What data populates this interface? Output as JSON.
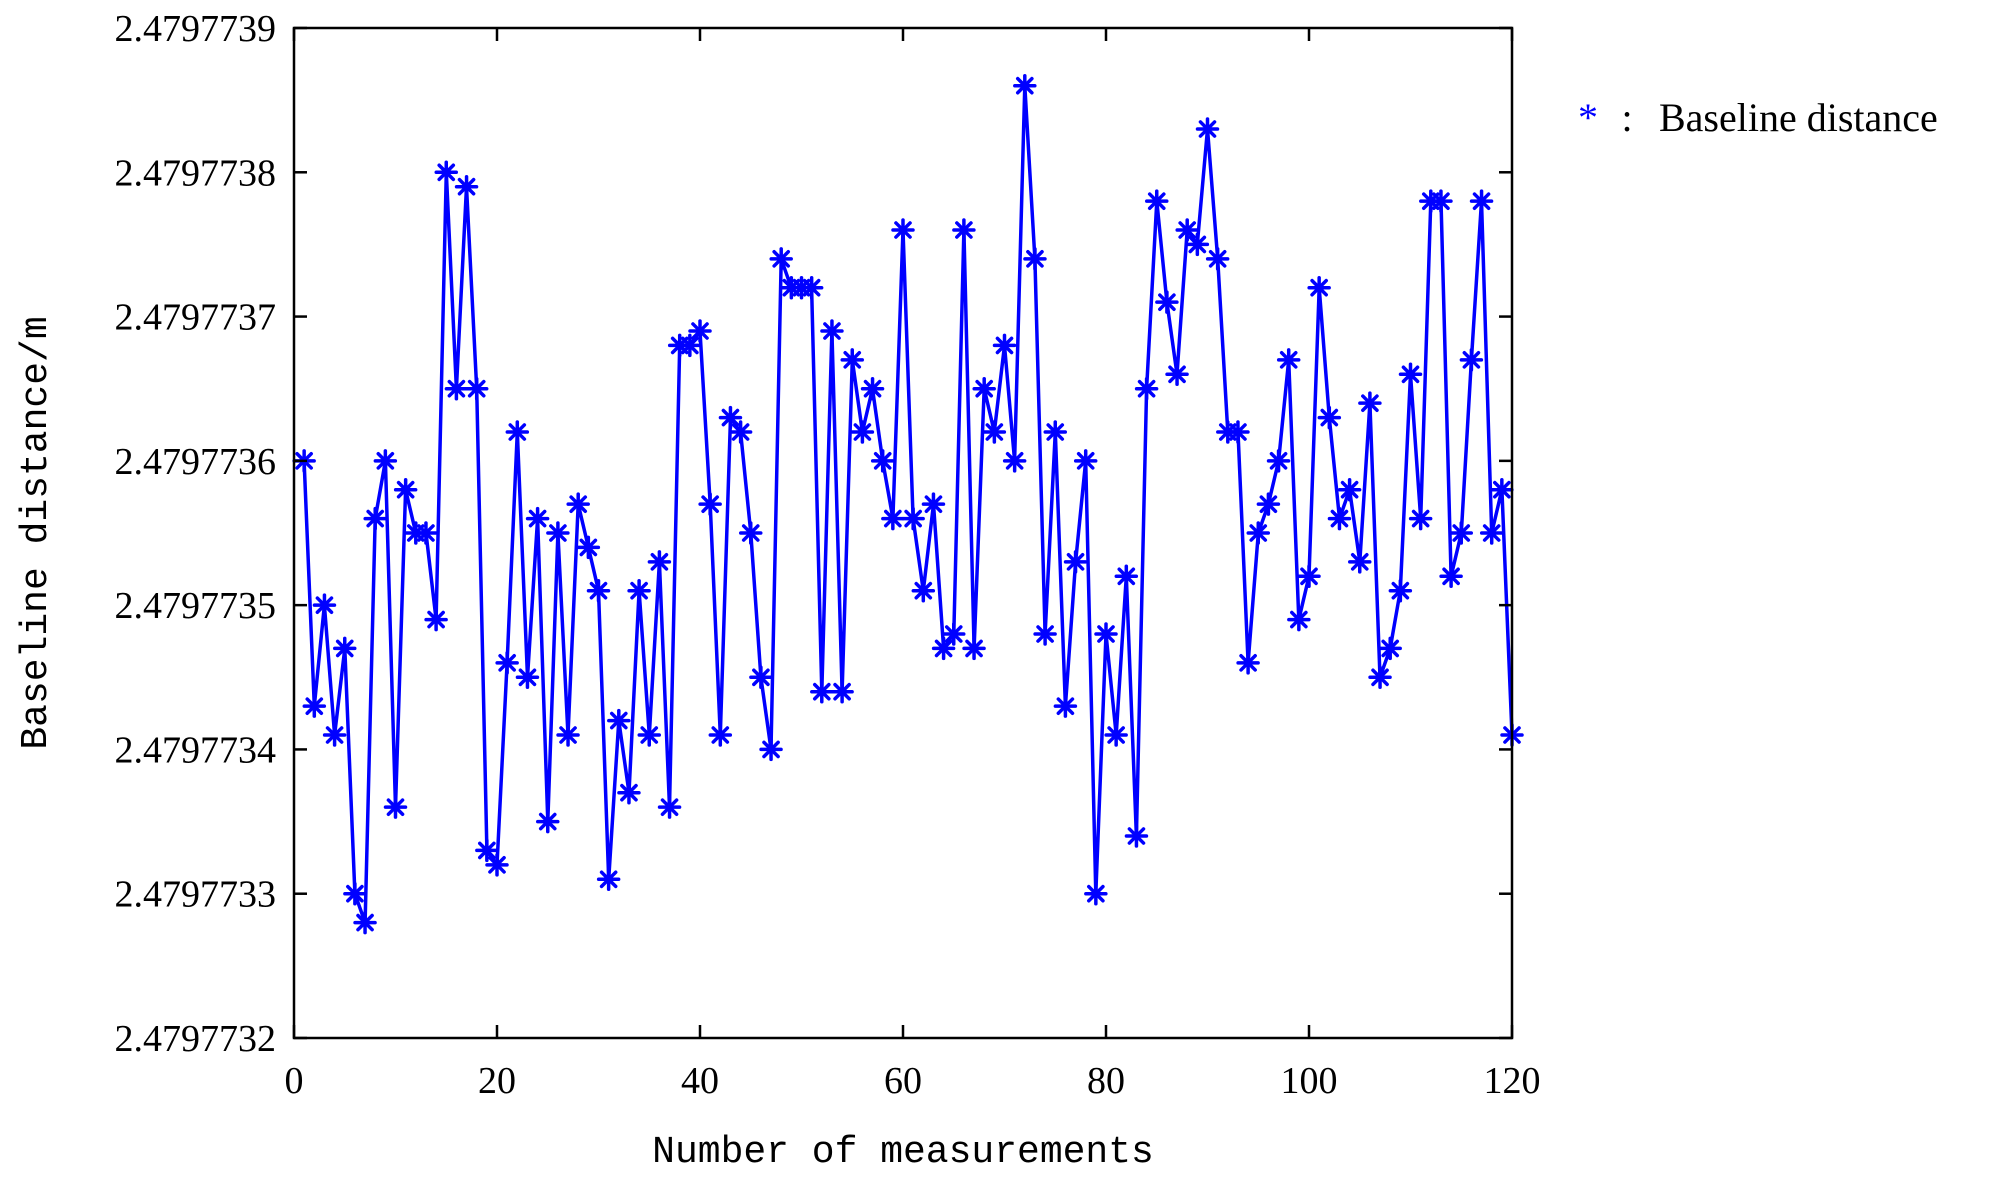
{
  "chart_data": {
    "type": "line",
    "title": "",
    "xlabel": "Number of measurements",
    "ylabel": "Baseline distance/m",
    "xlim": [
      0,
      120
    ],
    "ylim": [
      2.4797732,
      2.4797739
    ],
    "x_ticks": [
      0,
      20,
      40,
      60,
      80,
      100,
      120
    ],
    "x_tick_labels": [
      "0",
      "20",
      "40",
      "60",
      "80",
      "100",
      "120"
    ],
    "y_ticks": [
      2.4797732,
      2.4797733,
      2.4797734,
      2.4797735,
      2.4797736,
      2.4797737,
      2.4797738,
      2.4797739
    ],
    "y_tick_labels": [
      "2.4797732",
      "2.4797733",
      "2.4797734",
      "2.4797735",
      "2.4797736",
      "2.4797737",
      "2.4797738",
      "2.4797739"
    ],
    "grid": false,
    "legend": {
      "position": "outside-top-right",
      "marker": "*",
      "separator": ":",
      "label": "Baseline distance"
    },
    "series": [
      {
        "name": "Baseline distance",
        "color": "#0000ff",
        "marker": "*",
        "x": [
          1,
          2,
          3,
          4,
          5,
          6,
          7,
          8,
          9,
          10,
          11,
          12,
          13,
          14,
          15,
          16,
          17,
          18,
          19,
          20,
          21,
          22,
          23,
          24,
          25,
          26,
          27,
          28,
          29,
          30,
          31,
          32,
          33,
          34,
          35,
          36,
          37,
          38,
          39,
          40,
          41,
          42,
          43,
          44,
          45,
          46,
          47,
          48,
          49,
          50,
          51,
          52,
          53,
          54,
          55,
          56,
          57,
          58,
          59,
          60,
          61,
          62,
          63,
          64,
          65,
          66,
          67,
          68,
          69,
          70,
          71,
          72,
          73,
          74,
          75,
          76,
          77,
          78,
          79,
          80,
          81,
          82,
          83,
          84,
          85,
          86,
          87,
          88,
          89,
          90,
          91,
          92,
          93,
          94,
          95,
          96,
          97,
          98,
          99,
          100,
          101,
          102,
          103,
          104,
          105,
          106,
          107,
          108,
          109,
          110,
          111,
          112,
          113,
          114,
          115,
          116,
          117,
          118,
          119,
          120
        ],
        "y": [
          2.4797736,
          2.47977343,
          2.4797735,
          2.47977341,
          2.47977347,
          2.4797733,
          2.47977328,
          2.47977356,
          2.4797736,
          2.47977336,
          2.47977358,
          2.47977355,
          2.47977355,
          2.47977349,
          2.4797738,
          2.47977365,
          2.47977379,
          2.47977365,
          2.47977333,
          2.47977332,
          2.47977346,
          2.47977362,
          2.47977345,
          2.47977356,
          2.47977335,
          2.47977355,
          2.47977341,
          2.47977357,
          2.47977354,
          2.47977351,
          2.47977331,
          2.47977342,
          2.47977337,
          2.47977351,
          2.47977341,
          2.47977353,
          2.47977336,
          2.47977368,
          2.47977368,
          2.47977369,
          2.47977357,
          2.47977341,
          2.47977363,
          2.47977362,
          2.47977355,
          2.47977345,
          2.4797734,
          2.47977374,
          2.47977372,
          2.47977372,
          2.47977372,
          2.47977344,
          2.47977369,
          2.47977344,
          2.47977367,
          2.47977362,
          2.47977365,
          2.4797736,
          2.47977356,
          2.47977376,
          2.47977356,
          2.47977351,
          2.47977357,
          2.47977347,
          2.47977348,
          2.47977376,
          2.47977347,
          2.47977365,
          2.47977362,
          2.47977368,
          2.4797736,
          2.47977386,
          2.47977374,
          2.47977348,
          2.47977362,
          2.47977343,
          2.47977353,
          2.4797736,
          2.4797733,
          2.47977348,
          2.47977341,
          2.47977352,
          2.47977334,
          2.47977365,
          2.47977378,
          2.47977371,
          2.47977366,
          2.47977376,
          2.47977375,
          2.47977383,
          2.47977374,
          2.47977362,
          2.47977362,
          2.47977346,
          2.47977355,
          2.47977357,
          2.4797736,
          2.47977367,
          2.47977349,
          2.47977352,
          2.47977372,
          2.47977363,
          2.47977356,
          2.47977358,
          2.47977353,
          2.47977364,
          2.47977345,
          2.47977347,
          2.47977351,
          2.47977366,
          2.47977356,
          2.47977378,
          2.47977378,
          2.47977352,
          2.47977355,
          2.47977367,
          2.47977378,
          2.47977355,
          2.47977358,
          2.47977341
        ]
      }
    ]
  }
}
